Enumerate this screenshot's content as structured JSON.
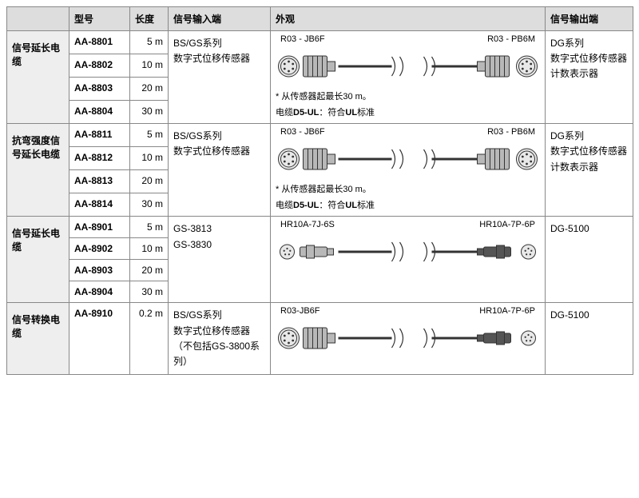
{
  "headers": {
    "model": "型号",
    "length": "长度",
    "sig_in": "信号输入端",
    "appearance": "外观",
    "sig_out": "信号输出端"
  },
  "groups": [
    {
      "category": "信号延长电缆",
      "sig_in": "BS/GS系列\n数字式位移传感器",
      "sig_out": "DG系列\n数字式位移传感器计数表示器",
      "conn_left_label": "R03 - JB6F",
      "conn_right_label": "R03 - PB6M",
      "cable_style": "type1",
      "note1": "* 从传感器起最长30 m。",
      "note2_a": "电缆",
      "note2_b": "D5-UL",
      "note2_c": "：符合",
      "note2_d": "UL",
      "note2_e": "标准",
      "rows": [
        {
          "model": "AA-8801",
          "len": "5 m"
        },
        {
          "model": "AA-8802",
          "len": "10 m"
        },
        {
          "model": "AA-8803",
          "len": "20 m"
        },
        {
          "model": "AA-8804",
          "len": "30 m"
        }
      ]
    },
    {
      "category": "抗弯强度信号延长电缆",
      "sig_in": "BS/GS系列\n数字式位移传感器",
      "sig_out": "DG系列\n数字式位移传感器计数表示器",
      "conn_left_label": "R03 - JB6F",
      "conn_right_label": "R03 - PB6M",
      "cable_style": "type1",
      "note1": "* 从传感器起最长30 m。",
      "note2_a": "电缆",
      "note2_b": "D5-UL",
      "note2_c": "：符合",
      "note2_d": "UL",
      "note2_e": "标准",
      "rows": [
        {
          "model": "AA-8811",
          "len": "5 m"
        },
        {
          "model": "AA-8812",
          "len": "10 m"
        },
        {
          "model": "AA-8813",
          "len": "20 m"
        },
        {
          "model": "AA-8814",
          "len": "30 m"
        }
      ]
    },
    {
      "category": "信号延长电缆",
      "sig_in": "GS-3813\nGS-3830",
      "sig_out": "DG-5100",
      "conn_left_label": "HR10A-7J-6S",
      "conn_right_label": "HR10A-7P-6P",
      "cable_style": "type2",
      "rows": [
        {
          "model": "AA-8901",
          "len": "5 m"
        },
        {
          "model": "AA-8902",
          "len": "10 m"
        },
        {
          "model": "AA-8903",
          "len": "20 m"
        },
        {
          "model": "AA-8904",
          "len": "30 m"
        }
      ]
    },
    {
      "category": "信号转换电缆",
      "sig_in": "BS/GS系列\n数字式位移传感器（不包括GS-3800系列）",
      "sig_out": "DG-5100",
      "conn_left_label": "R03-JB6F",
      "conn_right_label": "HR10A-7P-6P",
      "cable_style": "type3",
      "rows": [
        {
          "model": "AA-8910",
          "len": "0.2 m"
        }
      ]
    }
  ],
  "style": {
    "header_bg": "#dddddd",
    "cat_bg": "#eeeeee",
    "border": "#888888",
    "svg_stroke": "#333333",
    "svg_fill_dark": "#b8b8b8",
    "svg_fill_light": "#e8e8e8"
  }
}
